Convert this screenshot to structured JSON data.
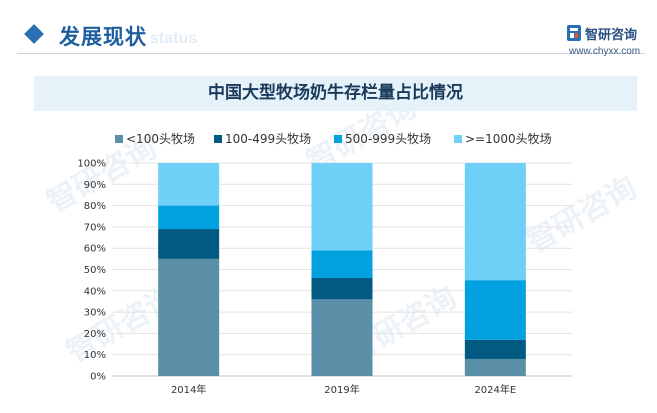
{
  "header": {
    "section_title": "发展现状",
    "watermark_word": "status",
    "logo_name": "智研咨询",
    "logo_url": "www.chyxx.com"
  },
  "watermark_text": "智研咨询",
  "colors": {
    "accent": "#2a6fb3",
    "title_band": "#e6f2fa"
  },
  "chart_data": {
    "type": "bar",
    "stacked": true,
    "title": "中国大型牧场奶牛存栏量占比情况",
    "categories": [
      "2014年",
      "2019年",
      "2024年E"
    ],
    "series": [
      {
        "name": "<100头牧场",
        "color": "#5b8fa8",
        "values": [
          55,
          36,
          8
        ]
      },
      {
        "name": "100-499头牧场",
        "color": "#005a82",
        "values": [
          14,
          10,
          9
        ]
      },
      {
        "name": "500-999头牧场",
        "color": "#00a1de",
        "values": [
          11,
          13,
          28
        ]
      },
      {
        "name": ">=1000头牧场",
        "color": "#6ed0f6",
        "values": [
          20,
          41,
          55
        ]
      }
    ],
    "ylim": [
      0,
      100
    ],
    "yticks": [
      "0%",
      "10%",
      "20%",
      "30%",
      "40%",
      "50%",
      "60%",
      "70%",
      "80%",
      "90%",
      "100%"
    ],
    "grid": true,
    "legend_position": "top"
  }
}
